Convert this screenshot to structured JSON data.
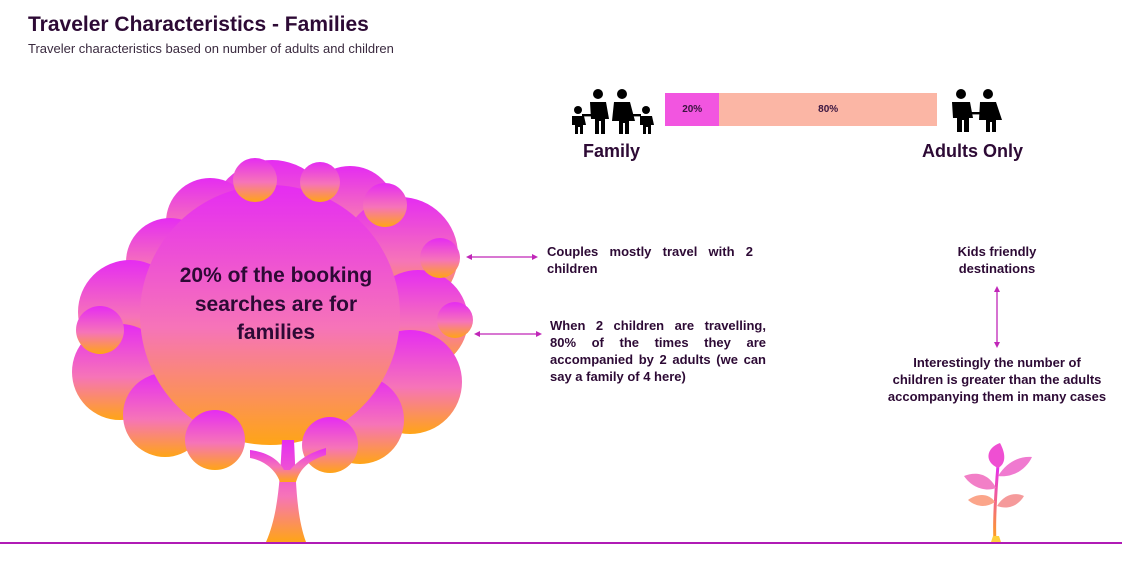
{
  "header": {
    "title": "Traveler Characteristics - Families",
    "subtitle": "Traveler characteristics based on number of adults and children"
  },
  "colors": {
    "family_segment": "#f255e0",
    "adults_segment": "#fbb6a5",
    "accent": "#c026b8",
    "tree_top": "#e52cf2",
    "tree_bottom": "#ffa516",
    "ground_line": "#b01bb5"
  },
  "chart_data": {
    "type": "bar",
    "orientation": "horizontal-stacked",
    "series": [
      {
        "name": "Family",
        "value": 20,
        "label": "20%"
      },
      {
        "name": "Adults Only",
        "value": 80,
        "label": "80%"
      }
    ],
    "xlim": [
      0,
      100
    ],
    "legend": [
      "Family",
      "Adults Only"
    ]
  },
  "legend": {
    "family_label": "Family",
    "adults_label": "Adults Only",
    "family_icon": "family-icon",
    "adults_icon": "couple-icon"
  },
  "tree": {
    "text": "20% of the booking searches are for families",
    "icon": "tree-icon"
  },
  "notes": {
    "couples": "Couples mostly travel with 2 children",
    "two_children": "When 2 children are travelling, 80% of the times they are accompanied by 2 adults (we can say a family of 4 here)",
    "kids_friendly": "Kids friendly destinations",
    "interestingly": "Interestingly the number of children is greater than the adults accompanying them in many cases"
  },
  "sapling_icon": "sapling-icon"
}
